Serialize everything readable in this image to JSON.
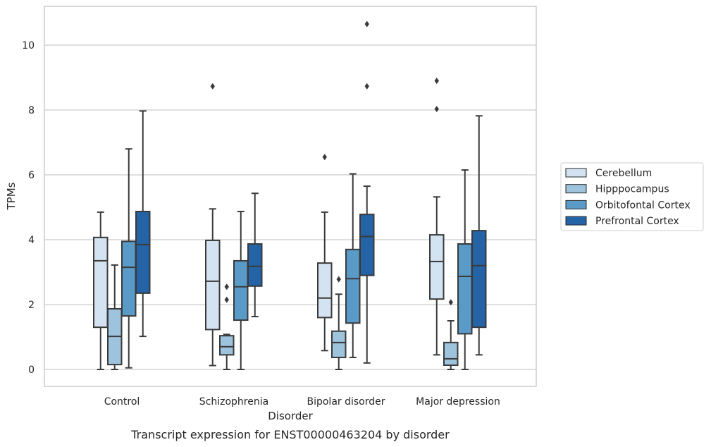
{
  "chart_data": {
    "type": "box",
    "caption": "Transcript expression for ENST00000463204 by disorder",
    "xlabel": "Disorder",
    "ylabel": "TPMs",
    "ylim": [
      -0.5,
      11.2
    ],
    "yticks": [
      0,
      2,
      4,
      6,
      8,
      10
    ],
    "grid": "horizontal",
    "legend_position": "right",
    "categories": [
      "Control",
      "Schizophrenia",
      "Bipolar disorder",
      "Major depression"
    ],
    "series": [
      {
        "name": "Cerebellum",
        "color": "#d4e3f2",
        "boxes": [
          {
            "whislo": 0.0,
            "q1": 1.3,
            "med": 3.35,
            "q3": 4.07,
            "whishi": 4.85,
            "fliers": []
          },
          {
            "whislo": 0.12,
            "q1": 1.23,
            "med": 2.72,
            "q3": 3.98,
            "whishi": 4.95,
            "fliers": [
              8.73
            ]
          },
          {
            "whislo": 0.58,
            "q1": 1.6,
            "med": 2.2,
            "q3": 3.28,
            "whishi": 4.85,
            "fliers": [
              6.55
            ]
          },
          {
            "whislo": 0.45,
            "q1": 2.17,
            "med": 3.33,
            "q3": 4.15,
            "whishi": 5.32,
            "fliers": [
              8.03,
              8.9
            ]
          }
        ]
      },
      {
        "name": "Hipppocampus",
        "color": "#9dc3dd",
        "boxes": [
          {
            "whislo": 0.0,
            "q1": 0.15,
            "med": 1.02,
            "q3": 1.87,
            "whishi": 3.22,
            "fliers": []
          },
          {
            "whislo": 0.0,
            "q1": 0.45,
            "med": 0.7,
            "q3": 1.04,
            "whishi": 1.08,
            "fliers": [
              2.15,
              2.55
            ]
          },
          {
            "whislo": 0.0,
            "q1": 0.37,
            "med": 0.83,
            "q3": 1.18,
            "whishi": 2.32,
            "fliers": [
              2.78
            ]
          },
          {
            "whislo": 0.0,
            "q1": 0.13,
            "med": 0.33,
            "q3": 0.83,
            "whishi": 1.5,
            "fliers": [
              2.07
            ]
          }
        ]
      },
      {
        "name": "Orbitofontal Cortex",
        "color": "#5a9ac6",
        "boxes": [
          {
            "whislo": 0.05,
            "q1": 1.65,
            "med": 3.15,
            "q3": 3.95,
            "whishi": 6.8,
            "fliers": []
          },
          {
            "whislo": 0.0,
            "q1": 1.52,
            "med": 2.55,
            "q3": 3.35,
            "whishi": 4.87,
            "fliers": []
          },
          {
            "whislo": 0.37,
            "q1": 1.43,
            "med": 2.8,
            "q3": 3.7,
            "whishi": 6.03,
            "fliers": []
          },
          {
            "whislo": 0.0,
            "q1": 1.1,
            "med": 2.87,
            "q3": 3.87,
            "whishi": 6.15,
            "fliers": []
          }
        ]
      },
      {
        "name": "Prefrontal Cortex",
        "color": "#2463a6",
        "boxes": [
          {
            "whislo": 1.02,
            "q1": 2.35,
            "med": 3.85,
            "q3": 4.87,
            "whishi": 7.97,
            "fliers": []
          },
          {
            "whislo": 1.63,
            "q1": 2.57,
            "med": 3.18,
            "q3": 3.87,
            "whishi": 5.43,
            "fliers": []
          },
          {
            "whislo": 0.2,
            "q1": 2.9,
            "med": 4.1,
            "q3": 4.78,
            "whishi": 5.65,
            "fliers": [
              8.73,
              10.65
            ]
          },
          {
            "whislo": 0.45,
            "q1": 1.3,
            "med": 3.2,
            "q3": 4.28,
            "whishi": 7.82,
            "fliers": []
          }
        ]
      }
    ]
  }
}
